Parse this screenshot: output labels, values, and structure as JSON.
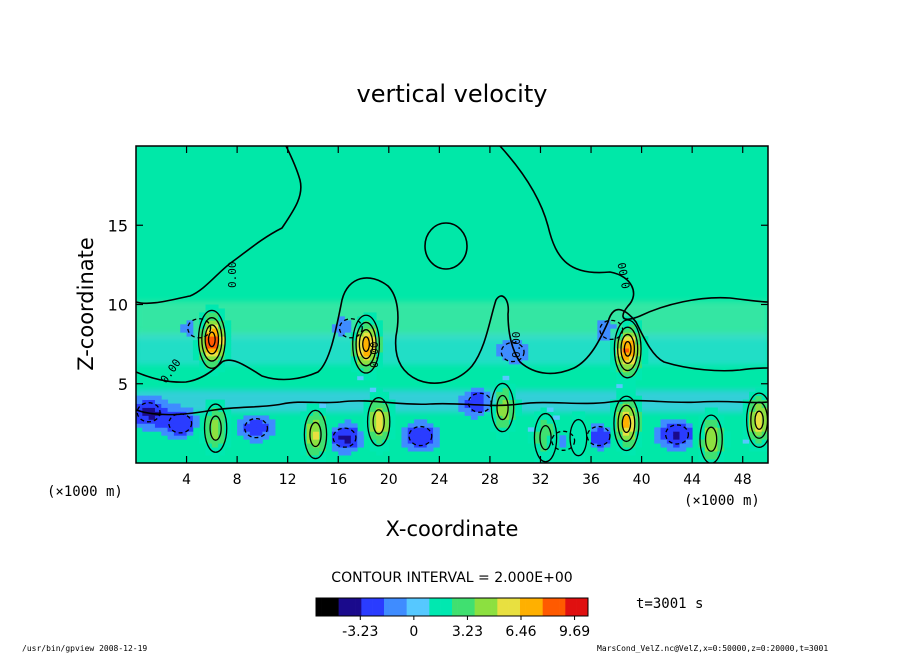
{
  "chart_data": {
    "type": "heatmap",
    "title": "vertical velocity",
    "xlabel": "X-coordinate",
    "ylabel": "Z-coordinate",
    "x_unit_left": "(×1000 m)",
    "x_unit_right": "(×1000 m)",
    "xlim": [
      0,
      50
    ],
    "ylim": [
      0,
      20
    ],
    "x_ticks": [
      "4",
      "8",
      "12",
      "16",
      "20",
      "24",
      "28",
      "32",
      "36",
      "40",
      "44",
      "48"
    ],
    "x_tick_values": [
      4,
      8,
      12,
      16,
      20,
      24,
      28,
      32,
      36,
      40,
      44,
      48
    ],
    "y_ticks": [
      "5",
      "10",
      "15"
    ],
    "y_tick_values": [
      5,
      10,
      15
    ],
    "zero_contour_label": "0.00",
    "contour_interval_label": "CONTOUR INTERVAL = 2.000E+00",
    "time_label": "t=3001 s",
    "colorbar": {
      "range": [
        -5.9,
        10.5
      ],
      "tick_labels": [
        "-3.23",
        "0",
        "3.23",
        "6.46",
        "9.69"
      ],
      "tick_values": [
        -3.23,
        0,
        3.23,
        6.46,
        9.69
      ],
      "colors": [
        "#000000",
        "#1a0a8c",
        "#2a3cff",
        "#3f8cff",
        "#56c8ff",
        "#00e8b0",
        "#40e070",
        "#8ce040",
        "#e8e040",
        "#ffb000",
        "#ff5a00",
        "#e01010"
      ]
    },
    "features": [
      {
        "x": 6.0,
        "z": 7.8,
        "w": 9.6
      },
      {
        "x": 18.2,
        "z": 7.5,
        "w": 8.0
      },
      {
        "x": 38.9,
        "z": 7.2,
        "w": 8.2
      },
      {
        "x": 6.3,
        "z": 2.2,
        "w": 4.5
      },
      {
        "x": 14.2,
        "z": 1.8,
        "w": 5.5
      },
      {
        "x": 19.2,
        "z": 2.6,
        "w": 5.8
      },
      {
        "x": 29.0,
        "z": 3.5,
        "w": 5.0
      },
      {
        "x": 32.4,
        "z": 1.6,
        "w": 4.2
      },
      {
        "x": 35.0,
        "z": 1.6,
        "w": 3.5
      },
      {
        "x": 38.8,
        "z": 2.5,
        "w": 7.0
      },
      {
        "x": 45.5,
        "z": 1.5,
        "w": 5.0
      },
      {
        "x": 49.3,
        "z": 2.7,
        "w": 6.0
      },
      {
        "x": 1.0,
        "z": 3.2,
        "w": -3.5
      },
      {
        "x": 3.5,
        "z": 2.5,
        "w": -3.0
      },
      {
        "x": 9.5,
        "z": 2.2,
        "w": -2.5
      },
      {
        "x": 16.5,
        "z": 1.6,
        "w": -3.5
      },
      {
        "x": 22.5,
        "z": 1.7,
        "w": -3.0
      },
      {
        "x": 27.2,
        "z": 3.8,
        "w": -3.0
      },
      {
        "x": 33.8,
        "z": 1.4,
        "w": -2.5
      },
      {
        "x": 36.6,
        "z": 1.7,
        "w": -3.0
      },
      {
        "x": 42.8,
        "z": 1.8,
        "w": -3.5
      },
      {
        "x": 5.0,
        "z": 8.5,
        "w": -2.2
      },
      {
        "x": 17.0,
        "z": 8.5,
        "w": -2.0
      },
      {
        "x": 37.6,
        "z": 8.4,
        "w": -2.0
      },
      {
        "x": 29.8,
        "z": 7.0,
        "w": -1.8
      }
    ]
  },
  "footer": {
    "left": "/usr/bin/gpview   2008-12-19",
    "right": "MarsCond_VelZ.nc@VelZ,x=0:50000,z=0:20000,t=3001"
  }
}
